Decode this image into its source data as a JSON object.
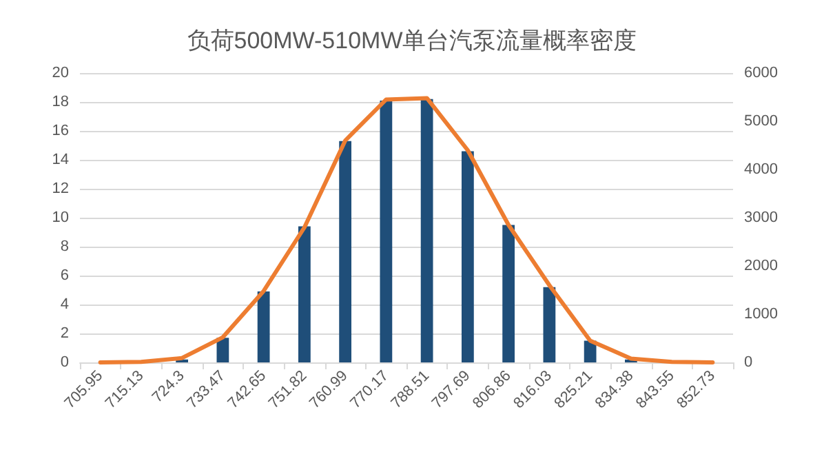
{
  "chart_data": {
    "type": "bar",
    "title": "负荷500MW-510MW单台汽泵流量概率密度",
    "categories": [
      "705.95",
      "715.13",
      "724.3",
      "733.47",
      "742.65",
      "751.82",
      "760.99",
      "770.17",
      "788.51",
      "797.69",
      "806.86",
      "816.03",
      "825.21",
      "834.38",
      "843.55",
      "852.73"
    ],
    "series": [
      {
        "color": "#1f4e79",
        "values": [
          0,
          0,
          0.2,
          1.7,
          4.9,
          9.4,
          15.3,
          18.1,
          18.2,
          14.6,
          9.5,
          5.2,
          1.5,
          0.2,
          0,
          0
        ]
      },
      {
        "type": "line",
        "axis": "y2",
        "color": "#ed7d31",
        "values": [
          0,
          10,
          90,
          520,
          1480,
          2800,
          4600,
          5450,
          5480,
          4400,
          2850,
          1600,
          450,
          80,
          10,
          0
        ]
      }
    ],
    "ylim": [
      0,
      20
    ],
    "yticks": [
      0,
      2,
      4,
      6,
      8,
      10,
      12,
      14,
      16,
      18,
      20
    ],
    "y2lim": [
      0,
      6000
    ],
    "y2ticks": [
      0,
      1000,
      2000,
      3000,
      4000,
      5000,
      6000
    ],
    "grid": "y",
    "marker": "none",
    "line_style": "solid"
  }
}
